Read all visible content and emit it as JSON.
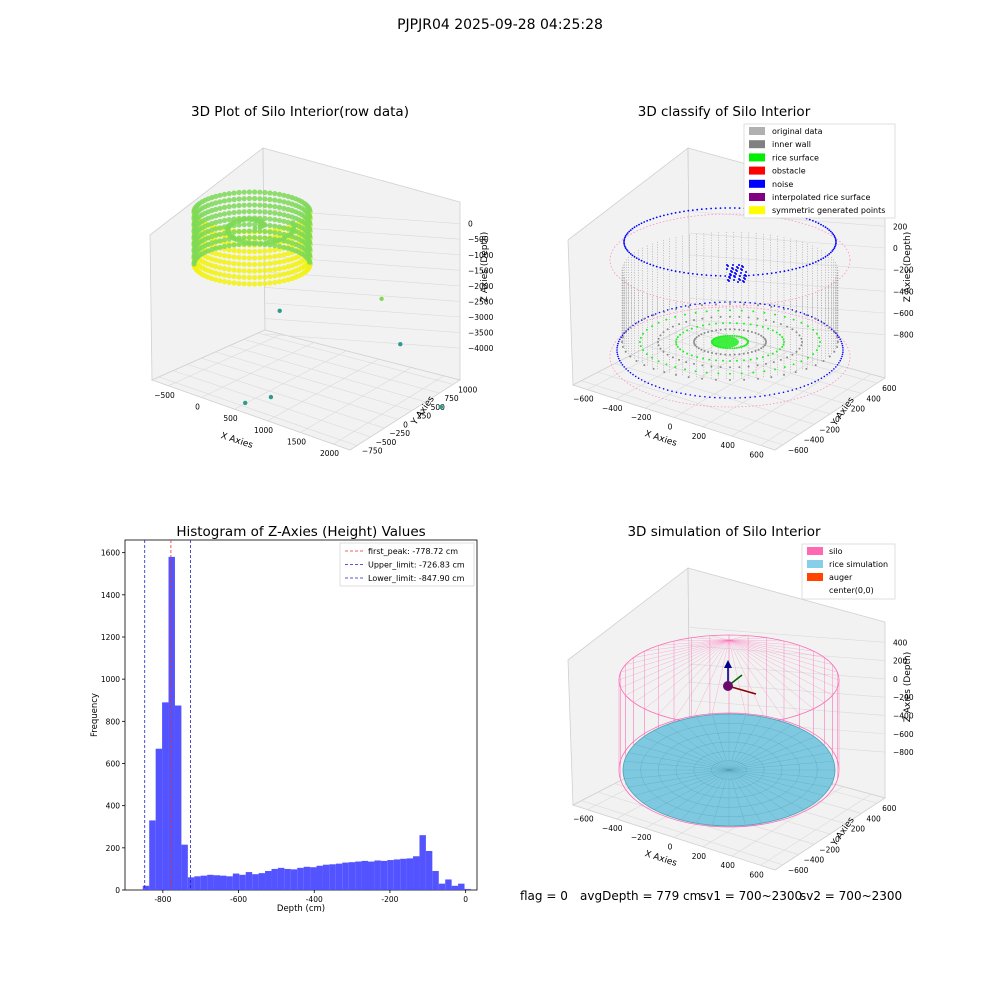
{
  "figure": {
    "suptitle": "PJPJR04 2025-09-28 04:25:28",
    "footer": {
      "flag": "flag = 0",
      "avg": "avgDepth = 779 cm",
      "sv1": "sv1 = 700~2300",
      "sv2": "sv2 = 700~2300"
    }
  },
  "chart_data": [
    {
      "type": "scatter",
      "title": "3D Plot of Silo Interior(row data)",
      "xlabel": "X Axies",
      "ylabel": "Y Axies",
      "zlabel": "Z Axies (Depth)",
      "x_ticks": [
        "−500",
        "0",
        "500",
        "1000",
        "1500",
        "2000"
      ],
      "y_ticks": [
        "−750",
        "−500",
        "−250",
        "0",
        "250",
        "500",
        "750",
        "1000"
      ],
      "z_ticks": [
        "0",
        "−500",
        "−1000",
        "−1500",
        "−2000",
        "−2500",
        "−3000",
        "−3500",
        "−4000"
      ],
      "xlim": [
        -600,
        2300
      ],
      "ylim": [
        -800,
        1050
      ],
      "zlim": [
        -4100,
        100
      ],
      "colors": {
        "low": "#2a9d8f",
        "mid": "#7ed957",
        "high": "#f2f20f"
      },
      "outliers": [
        {
          "x": 1800,
          "y": 300,
          "z": -900
        },
        {
          "x": 1900,
          "y": 500,
          "z": -2150
        },
        {
          "x": 700,
          "y": -300,
          "z": -3400
        },
        {
          "x": 500,
          "y": -500,
          "z": -3500
        },
        {
          "x": 2150,
          "y": 900,
          "z": -3950
        },
        {
          "x": 250,
          "y": 350,
          "z": -2000
        }
      ],
      "grid": true
    },
    {
      "type": "scatter",
      "title": "3D classify of Silo Interior",
      "xlabel": "X Axies",
      "ylabel": "Y Axies",
      "zlabel": "Z Axies (Depth)",
      "x_ticks": [
        "−600",
        "−400",
        "−200",
        "0",
        "200",
        "400",
        "600"
      ],
      "y_ticks": [
        "−600",
        "−400",
        "−200",
        "0",
        "200",
        "400",
        "600"
      ],
      "z_ticks": [
        "200",
        "0",
        "−200",
        "−400",
        "−600",
        "−800"
      ],
      "legend": [
        {
          "label": "original data",
          "color": "#b0b0b0"
        },
        {
          "label": "inner wall",
          "color": "#808080"
        },
        {
          "label": "rice surface",
          "color": "#00ee00"
        },
        {
          "label": "obstacle",
          "color": "#ff0000"
        },
        {
          "label": "noise",
          "color": "#0000ff"
        },
        {
          "label": "interpolated rice surface",
          "color": "#800080"
        },
        {
          "label": "symmetric generated points",
          "color": "#ffff00"
        }
      ],
      "legend_loc": "upper right",
      "grid": true
    },
    {
      "type": "bar",
      "title": "Histogram of Z-Axies (Height) Values",
      "xlabel": "Depth (cm)",
      "ylabel": "Frequency",
      "xlim": [
        -900,
        30
      ],
      "ylim": [
        0,
        1660
      ],
      "x_ticks": [
        -800,
        -600,
        -400,
        -200,
        0
      ],
      "y_ticks": [
        0,
        200,
        400,
        600,
        800,
        1000,
        1200,
        1400,
        1600
      ],
      "bin_width": 17,
      "bins_start": [
        -853,
        -836,
        -819,
        -802,
        -785,
        -768,
        -751,
        -734,
        -717,
        -700,
        -683,
        -666,
        -649,
        -632,
        -615,
        -598,
        -581,
        -564,
        -547,
        -530,
        -513,
        -496,
        -479,
        -462,
        -445,
        -428,
        -411,
        -394,
        -377,
        -360,
        -343,
        -326,
        -309,
        -292,
        -275,
        -258,
        -241,
        -224,
        -207,
        -190,
        -173,
        -156,
        -139,
        -122,
        -105,
        -88,
        -71,
        -54,
        -37,
        -20,
        -3
      ],
      "values": [
        20,
        330,
        670,
        890,
        1580,
        875,
        215,
        60,
        65,
        68,
        72,
        70,
        68,
        65,
        78,
        72,
        85,
        75,
        80,
        90,
        100,
        105,
        100,
        98,
        105,
        110,
        108,
        115,
        120,
        122,
        125,
        130,
        132,
        135,
        138,
        135,
        140,
        138,
        142,
        145,
        148,
        150,
        160,
        260,
        185,
        90,
        30,
        50,
        20,
        30,
        5
      ],
      "bar_color": "#4a4aff",
      "lines": [
        {
          "label": "first_peak: -778.72 cm",
          "value": -778.72,
          "color": "#e03030"
        },
        {
          "label": "Upper_limit: -726.83 cm",
          "value": -726.83,
          "color": "#2020c0"
        },
        {
          "label": "Lower_limit: -847.90 cm",
          "value": -847.9,
          "color": "#2020c0"
        }
      ],
      "legend_loc": "upper right"
    },
    {
      "type": "scatter",
      "title": "3D simulation of Silo Interior",
      "xlabel": "X Axies",
      "ylabel": "Y Axies",
      "zlabel": "Z Axies (Depth)",
      "x_ticks": [
        "−600",
        "−400",
        "−200",
        "0",
        "200",
        "400",
        "600"
      ],
      "y_ticks": [
        "−600",
        "−400",
        "−200",
        "0",
        "200",
        "400",
        "600"
      ],
      "z_ticks": [
        "400",
        "200",
        "0",
        "−200",
        "−400",
        "−600",
        "−800"
      ],
      "legend": [
        {
          "label": "silo",
          "color": "#ff69b4"
        },
        {
          "label": "rice simulation",
          "color": "#87ceeb"
        },
        {
          "label": "auger",
          "color": "#ff4500"
        },
        {
          "label": "center(0,0)",
          "color": "none"
        }
      ],
      "legend_loc": "upper right",
      "grid": true
    }
  ]
}
